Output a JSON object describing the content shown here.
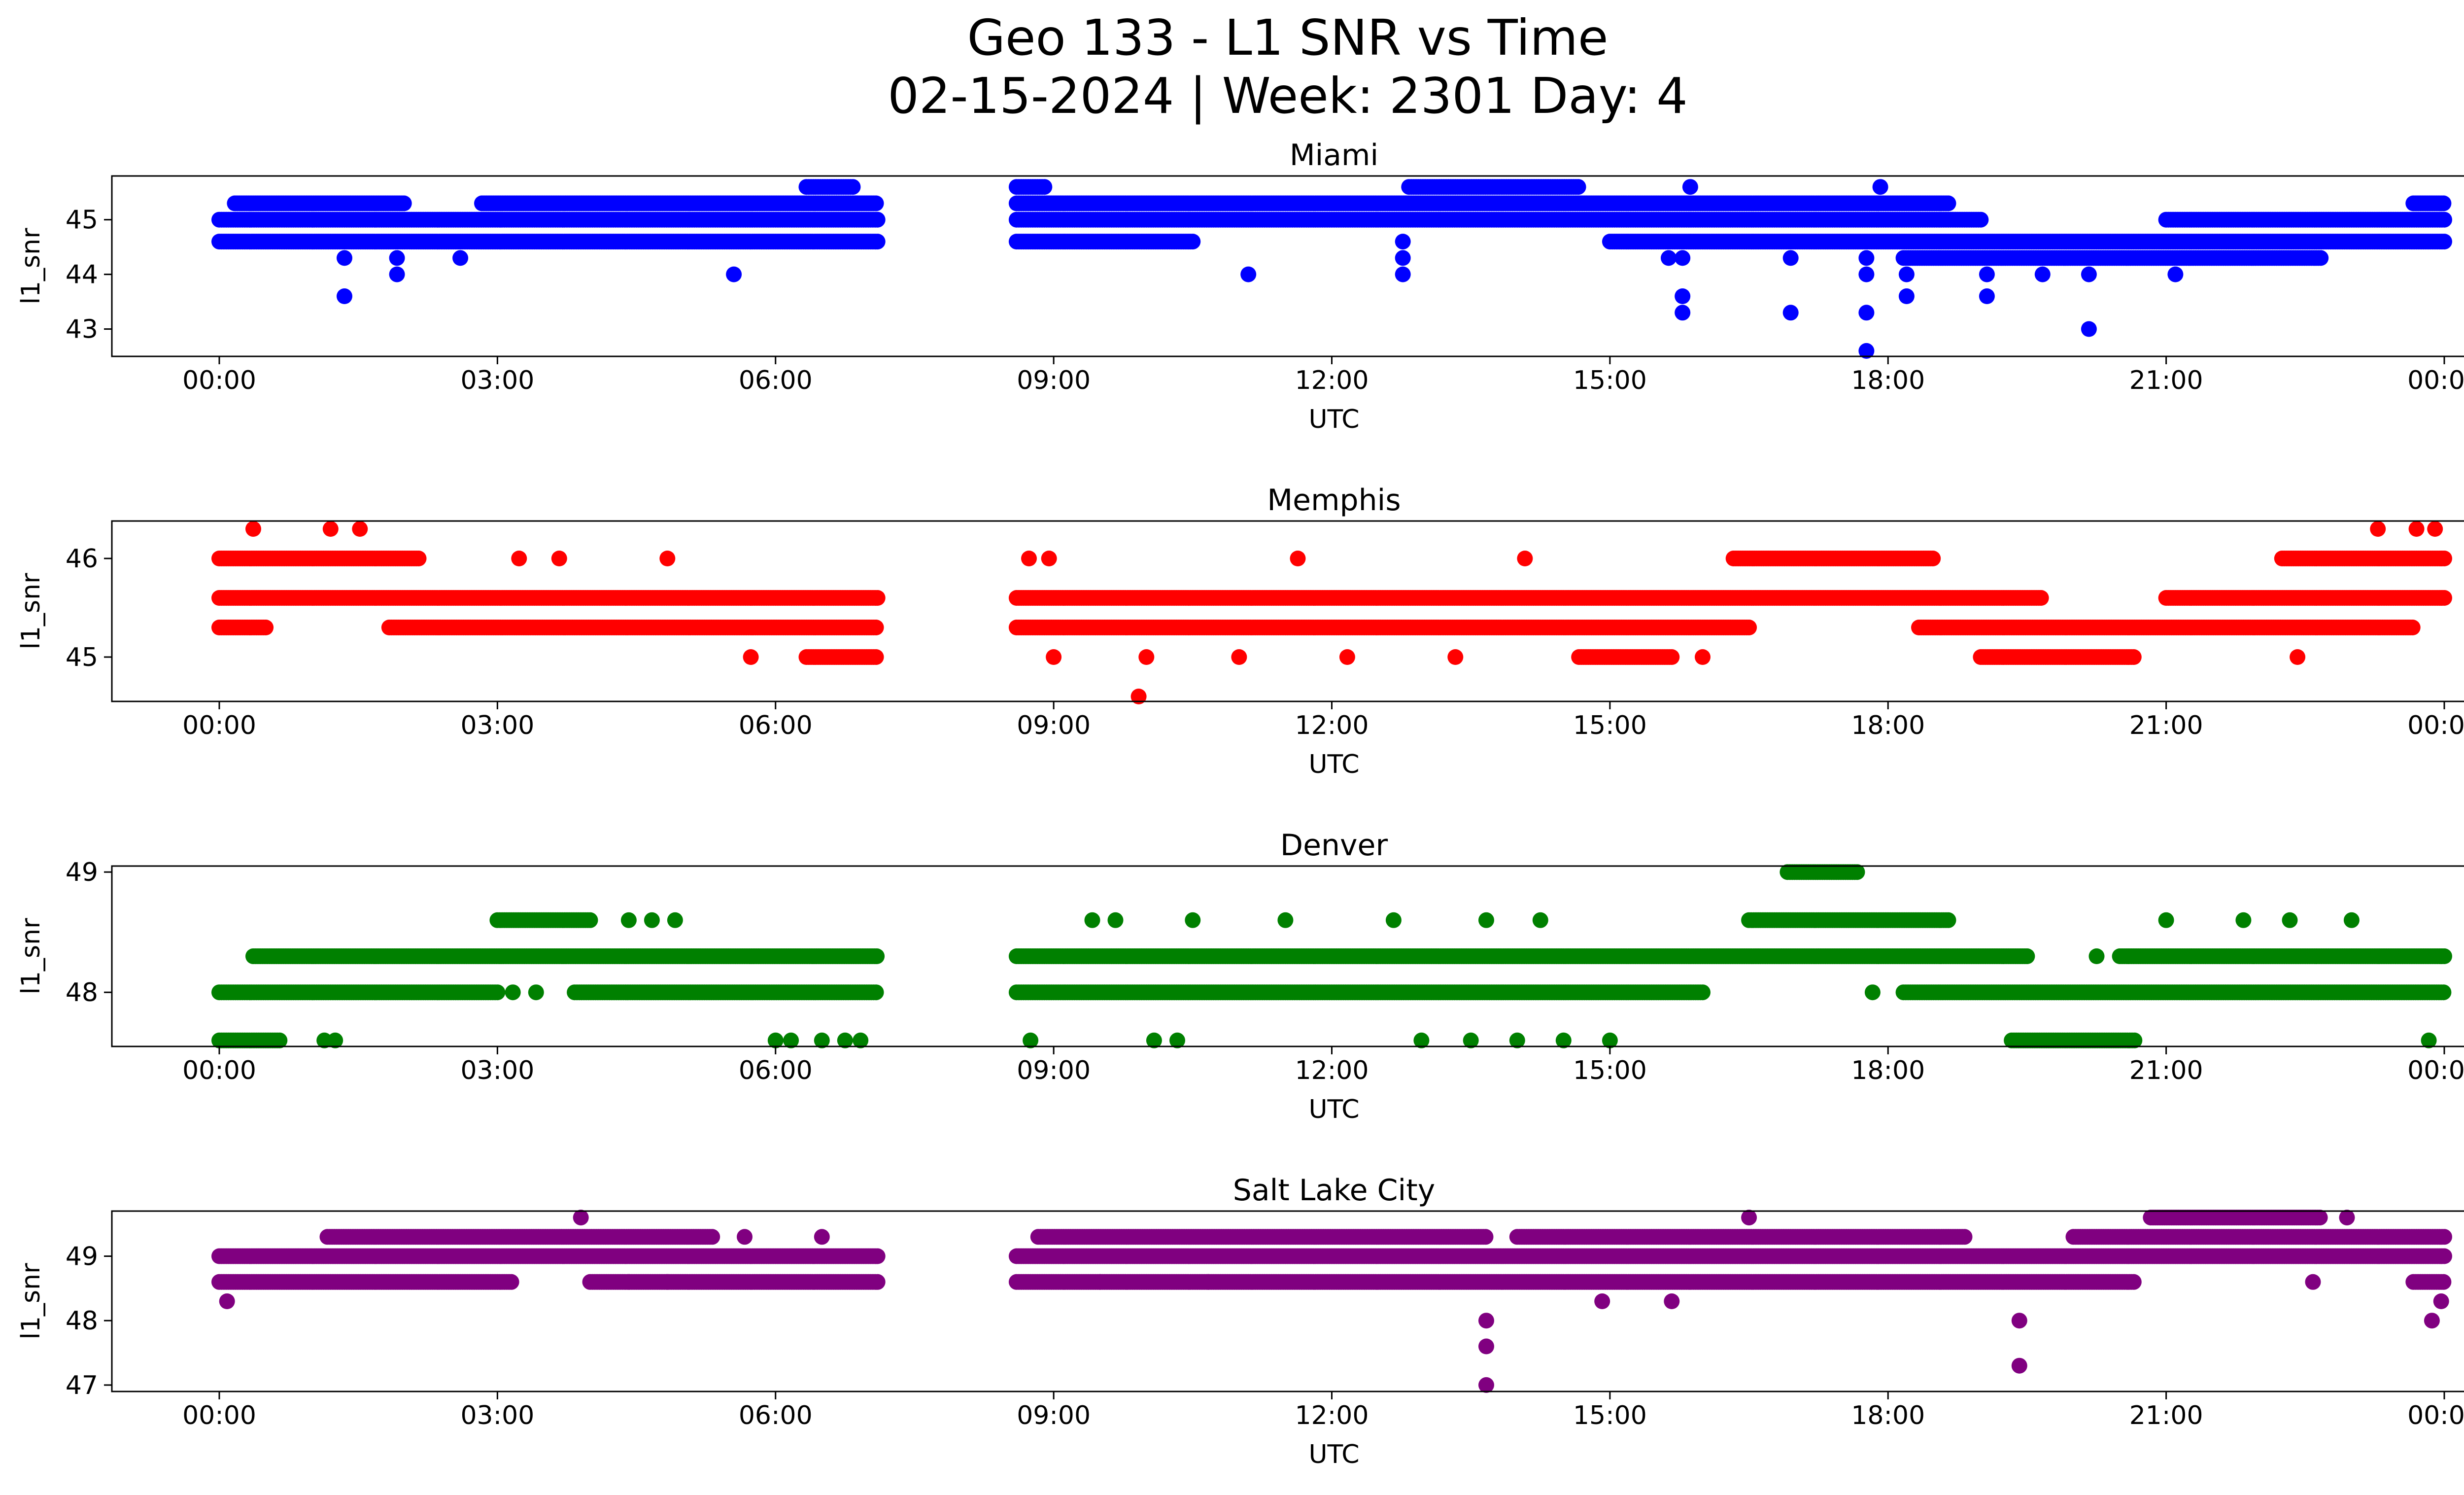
{
  "figure": {
    "title_line1": "Geo 133 - L1 SNR vs Time",
    "title_line2": "02-15-2024 | Week: 2301 Day: 4"
  },
  "chart_data": [
    {
      "type": "scatter",
      "title": "Miami",
      "xlabel": "UTC",
      "ylabel": "l1_snr",
      "color": "#0000ff",
      "xlim": [
        "00:00",
        "24:00"
      ],
      "ylim": [
        42.5,
        45.8
      ],
      "x_ticks": [
        "00:00",
        "03:00",
        "06:00",
        "09:00",
        "12:00",
        "15:00",
        "18:00",
        "21:00",
        "00:00"
      ],
      "y_ticks": [
        43,
        44,
        45
      ],
      "grid": false,
      "data_gap": [
        "07:06",
        "08:36"
      ],
      "series": [
        {
          "level_values": [
            44.6,
            45.0,
            45.3,
            45.6,
            44.3
          ],
          "level_time_ranges": [
            [
              [
                "00:00",
                "07:06"
              ],
              [
                "08:36",
                "10:30"
              ],
              [
                "15:00",
                "24:00"
              ]
            ],
            [
              [
                "00:00",
                "07:06"
              ],
              [
                "08:36",
                "19:00"
              ],
              [
                "21:00",
                "24:00"
              ]
            ],
            [
              [
                "00:10",
                "02:00"
              ],
              [
                "02:50",
                "07:06"
              ],
              [
                "08:36",
                "18:40"
              ],
              [
                "23:40",
                "24:00"
              ]
            ],
            [
              [
                "06:20",
                "06:50"
              ],
              [
                "08:36",
                "08:54"
              ],
              [
                "12:50",
                "14:40"
              ]
            ],
            [
              [
                "18:10",
                "22:40"
              ]
            ]
          ],
          "points": [
            [
              "01:21",
              43.6
            ],
            [
              "01:21",
              44.3
            ],
            [
              "01:55",
              44.0
            ],
            [
              "01:55",
              44.3
            ],
            [
              "02:36",
              44.3
            ],
            [
              "05:33",
              44.0
            ],
            [
              "11:06",
              44.0
            ],
            [
              "12:46",
              44.0
            ],
            [
              "12:46",
              44.3
            ],
            [
              "12:46",
              44.6
            ],
            [
              "15:38",
              44.3
            ],
            [
              "15:47",
              43.6
            ],
            [
              "15:47",
              43.3
            ],
            [
              "15:47",
              44.3
            ],
            [
              "16:57",
              43.3
            ],
            [
              "16:57",
              44.3
            ],
            [
              "17:46",
              42.6
            ],
            [
              "17:46",
              43.3
            ],
            [
              "17:46",
              44.0
            ],
            [
              "17:46",
              44.3
            ],
            [
              "18:12",
              43.6
            ],
            [
              "18:12",
              44.0
            ],
            [
              "19:04",
              43.6
            ],
            [
              "19:04",
              44.0
            ],
            [
              "19:40",
              44.0
            ],
            [
              "20:10",
              43.0
            ],
            [
              "20:10",
              44.0
            ],
            [
              "21:06",
              44.0
            ],
            [
              "17:55",
              45.6
            ],
            [
              "15:52",
              45.6
            ]
          ]
        }
      ]
    },
    {
      "type": "scatter",
      "title": "Memphis",
      "xlabel": "UTC",
      "ylabel": "l1_snr",
      "color": "#ff0000",
      "xlim": [
        "00:00",
        "24:00"
      ],
      "ylim": [
        44.55,
        46.38
      ],
      "x_ticks": [
        "00:00",
        "03:00",
        "06:00",
        "09:00",
        "12:00",
        "15:00",
        "18:00",
        "21:00",
        "00:00"
      ],
      "y_ticks": [
        45,
        46
      ],
      "grid": false,
      "data_gap": [
        "07:06",
        "08:36"
      ],
      "series": [
        {
          "level_values": [
            46.0,
            45.6,
            45.3,
            45.0
          ],
          "level_time_ranges": [
            [
              [
                "00:00",
                "02:10"
              ],
              [
                "16:20",
                "18:30"
              ],
              [
                "22:15",
                "24:00"
              ]
            ],
            [
              [
                "00:00",
                "07:06"
              ],
              [
                "08:36",
                "19:40"
              ],
              [
                "21:00",
                "24:00"
              ]
            ],
            [
              [
                "00:00",
                "00:30"
              ],
              [
                "01:50",
                "07:06"
              ],
              [
                "08:36",
                "16:30"
              ],
              [
                "18:20",
                "23:40"
              ]
            ],
            [
              [
                "06:20",
                "07:06"
              ],
              [
                "19:00",
                "20:40"
              ],
              [
                "14:40",
                "15:40"
              ]
            ]
          ],
          "points": [
            [
              "00:22",
              46.3
            ],
            [
              "01:12",
              46.3
            ],
            [
              "01:31",
              46.3
            ],
            [
              "23:17",
              46.3
            ],
            [
              "23:42",
              46.3
            ],
            [
              "23:54",
              46.3
            ],
            [
              "03:14",
              46.0
            ],
            [
              "03:40",
              46.0
            ],
            [
              "04:50",
              46.0
            ],
            [
              "08:44",
              46.0
            ],
            [
              "08:57",
              46.0
            ],
            [
              "11:38",
              46.0
            ],
            [
              "14:05",
              46.0
            ],
            [
              "05:44",
              45.0
            ],
            [
              "09:00",
              45.0
            ],
            [
              "10:00",
              45.0
            ],
            [
              "11:00",
              45.0
            ],
            [
              "12:10",
              45.0
            ],
            [
              "13:20",
              45.0
            ],
            [
              "16:00",
              45.0
            ],
            [
              "22:25",
              45.0
            ],
            [
              "09:55",
              44.6
            ]
          ]
        }
      ]
    },
    {
      "type": "scatter",
      "title": "Denver",
      "xlabel": "UTC",
      "ylabel": "l1_snr",
      "color": "#008000",
      "xlim": [
        "00:00",
        "24:00"
      ],
      "ylim": [
        47.55,
        49.05
      ],
      "x_ticks": [
        "00:00",
        "03:00",
        "06:00",
        "09:00",
        "12:00",
        "15:00",
        "18:00",
        "21:00",
        "00:00"
      ],
      "y_ticks": [
        48,
        49
      ],
      "grid": false,
      "data_gap": [
        "07:06",
        "08:36"
      ],
      "series": [
        {
          "level_values": [
            48.0,
            48.3,
            48.6,
            49.0,
            47.6
          ],
          "level_time_ranges": [
            [
              [
                "00:00",
                "03:00"
              ],
              [
                "03:50",
                "07:06"
              ],
              [
                "08:36",
                "16:00"
              ],
              [
                "18:10",
                "24:00"
              ]
            ],
            [
              [
                "00:22",
                "07:06"
              ],
              [
                "08:36",
                "19:30"
              ],
              [
                "20:30",
                "24:00"
              ]
            ],
            [
              [
                "03:00",
                "04:00"
              ],
              [
                "16:30",
                "18:40"
              ]
            ],
            [
              [
                "16:55",
                "17:40"
              ]
            ],
            [
              [
                "00:00",
                "00:40"
              ],
              [
                "19:20",
                "20:40"
              ]
            ]
          ],
          "points": [
            [
              "01:08",
              47.6
            ],
            [
              "01:15",
              47.6
            ],
            [
              "06:00",
              47.6
            ],
            [
              "06:10",
              47.6
            ],
            [
              "06:30",
              47.6
            ],
            [
              "06:45",
              47.6
            ],
            [
              "06:55",
              47.6
            ],
            [
              "08:45",
              47.6
            ],
            [
              "10:05",
              47.6
            ],
            [
              "10:20",
              47.6
            ],
            [
              "12:58",
              47.6
            ],
            [
              "13:30",
              47.6
            ],
            [
              "14:00",
              47.6
            ],
            [
              "14:30",
              47.6
            ],
            [
              "15:00",
              47.6
            ],
            [
              "23:50",
              47.6
            ],
            [
              "04:25",
              48.6
            ],
            [
              "04:40",
              48.6
            ],
            [
              "04:55",
              48.6
            ],
            [
              "09:25",
              48.6
            ],
            [
              "09:40",
              48.6
            ],
            [
              "10:30",
              48.6
            ],
            [
              "11:30",
              48.6
            ],
            [
              "12:40",
              48.6
            ],
            [
              "13:40",
              48.6
            ],
            [
              "14:15",
              48.6
            ],
            [
              "21:00",
              48.6
            ],
            [
              "21:50",
              48.6
            ],
            [
              "22:20",
              48.6
            ],
            [
              "23:00",
              48.6
            ],
            [
              "03:10",
              48.0
            ],
            [
              "03:25",
              48.0
            ],
            [
              "17:50",
              48.0
            ],
            [
              "20:15",
              48.3
            ]
          ]
        }
      ]
    },
    {
      "type": "scatter",
      "title": "Salt Lake City",
      "xlabel": "UTC",
      "ylabel": "l1_snr",
      "color": "#800080",
      "xlim": [
        "00:00",
        "24:00"
      ],
      "ylim": [
        46.9,
        49.7
      ],
      "x_ticks": [
        "00:00",
        "03:00",
        "06:00",
        "09:00",
        "12:00",
        "15:00",
        "18:00",
        "21:00",
        "00:00"
      ],
      "y_ticks": [
        47,
        48,
        49
      ],
      "grid": false,
      "data_gap": [
        "07:06",
        "08:36"
      ],
      "series": [
        {
          "level_values": [
            49.0,
            48.6,
            49.3,
            49.6
          ],
          "level_time_ranges": [
            [
              [
                "00:00",
                "07:06"
              ],
              [
                "08:36",
                "24:00"
              ]
            ],
            [
              [
                "00:00",
                "03:10"
              ],
              [
                "04:00",
                "07:06"
              ],
              [
                "08:36",
                "20:40"
              ],
              [
                "23:40",
                "24:00"
              ]
            ],
            [
              [
                "01:10",
                "05:20"
              ],
              [
                "08:50",
                "13:40"
              ],
              [
                "14:00",
                "18:50"
              ],
              [
                "20:00",
                "24:00"
              ]
            ],
            [
              [
                "20:50",
                "22:40"
              ]
            ]
          ],
          "points": [
            [
              "00:05",
              48.3
            ],
            [
              "03:54",
              49.6
            ],
            [
              "16:30",
              49.6
            ],
            [
              "22:57",
              49.6
            ],
            [
              "05:40",
              49.3
            ],
            [
              "06:30",
              49.3
            ],
            [
              "13:40",
              48.0
            ],
            [
              "13:40",
              47.6
            ],
            [
              "13:40",
              47.0
            ],
            [
              "14:55",
              48.3
            ],
            [
              "15:40",
              48.3
            ],
            [
              "19:25",
              48.0
            ],
            [
              "19:25",
              47.3
            ],
            [
              "22:35",
              48.6
            ],
            [
              "23:52",
              48.0
            ],
            [
              "23:58",
              48.3
            ],
            [
              "04:25",
              48.6
            ],
            [
              "04:50",
              48.6
            ],
            [
              "09:30",
              48.6
            ],
            [
              "10:40",
              48.6
            ]
          ]
        }
      ]
    }
  ]
}
